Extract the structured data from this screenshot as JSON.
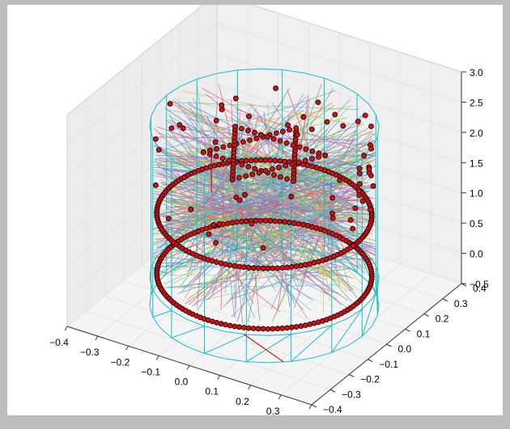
{
  "chart_data": {
    "type": "scatter",
    "projection": "3d",
    "title": "",
    "xlabel": "",
    "ylabel": "",
    "zlabel": "",
    "xlim": [
      -0.4,
      0.4
    ],
    "ylim": [
      -0.4,
      0.4
    ],
    "zlim": [
      -0.5,
      3.0
    ],
    "x_ticks": [
      "−0.4",
      "−0.3",
      "−0.2",
      "−0.1",
      "0.0",
      "0.1",
      "0.2",
      "0.3",
      "0.4"
    ],
    "y_ticks": [
      "−0.4",
      "−0.3",
      "−0.2",
      "−0.1",
      "0.0",
      "0.1",
      "0.2",
      "0.3",
      "0.4"
    ],
    "z_ticks": [
      "−0.5",
      "0.0",
      "0.5",
      "1.0",
      "1.5",
      "2.0",
      "2.5",
      "3.0"
    ],
    "grid": true,
    "cylinder": {
      "radius": 0.32,
      "z_bottom": -0.5,
      "z_top": 2.45,
      "color": "#17bfc6"
    },
    "point_color": "#d41010",
    "point_edge": "#000000",
    "rings": [
      {
        "name": "ring",
        "z": 0.0,
        "radius": 0.3
      },
      {
        "name": "ring",
        "z": 1.0,
        "radius": 0.3
      }
    ],
    "star": {
      "z": 2.0,
      "radius": 0.17,
      "points": 6
    }
  }
}
